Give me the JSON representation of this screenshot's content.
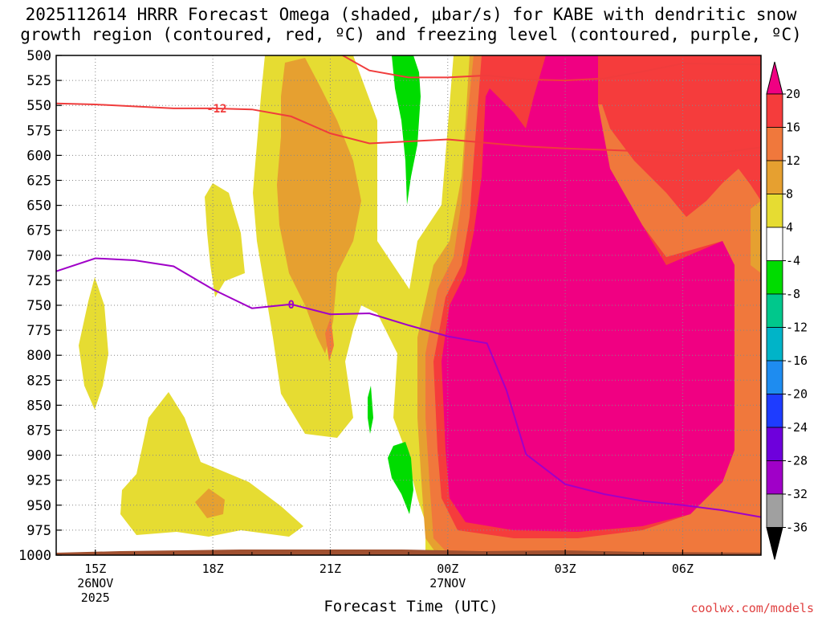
{
  "title_line1": "2025112614 HRRR Forecast Omega (shaded, μbar/s) for KABE with dendritic snow",
  "title_line2": "growth region (contoured, red, ºC) and freezing level (contoured, purple, ºC)",
  "credit": "coolwx.com/models",
  "chart_data": {
    "type": "contour",
    "xlabel": "Forecast Time (UTC)",
    "ylabel": "",
    "x_ticks": [
      {
        "hour": 1,
        "label": "15Z",
        "sub1": "26NOV",
        "sub2": "2025"
      },
      {
        "hour": 4,
        "label": "18Z",
        "sub1": "",
        "sub2": ""
      },
      {
        "hour": 7,
        "label": "21Z",
        "sub1": "",
        "sub2": ""
      },
      {
        "hour": 10,
        "label": "00Z",
        "sub1": "27NOV",
        "sub2": ""
      },
      {
        "hour": 13,
        "label": "03Z",
        "sub1": "",
        "sub2": ""
      },
      {
        "hour": 16,
        "label": "06Z",
        "sub1": "",
        "sub2": ""
      }
    ],
    "xlim": [
      0,
      18
    ],
    "y_ticks": [
      "500",
      "525",
      "550",
      "575",
      "600",
      "625",
      "650",
      "675",
      "700",
      "725",
      "750",
      "775",
      "800",
      "825",
      "850",
      "875",
      "900",
      "925",
      "950",
      "975",
      "1000"
    ],
    "ylim": [
      500,
      1000
    ],
    "colorbar": {
      "labels": [
        "20",
        "16",
        "12",
        "8",
        "4",
        "-4",
        "-8",
        "-12",
        "-16",
        "-20",
        "-24",
        "-28",
        "-32",
        "-36"
      ],
      "bins": [
        {
          "from": 16,
          "to": 20,
          "color": "#f53c3c"
        },
        {
          "from": 12,
          "to": 16,
          "color": "#f0783c"
        },
        {
          "from": 8,
          "to": 12,
          "color": "#e6a030"
        },
        {
          "from": 4,
          "to": 8,
          "color": "#e6dc32"
        },
        {
          "from": -4,
          "to": 4,
          "color": "#ffffff"
        },
        {
          "from": -8,
          "to": -4,
          "color": "#00dc00"
        },
        {
          "from": -12,
          "to": -8,
          "color": "#00c88c"
        },
        {
          "from": -16,
          "to": -12,
          "color": "#00b4c8"
        },
        {
          "from": -20,
          "to": -16,
          "color": "#1e8cf0"
        },
        {
          "from": -24,
          "to": -20,
          "color": "#1e3cff"
        },
        {
          "from": -28,
          "to": -24,
          "color": "#6e00dc"
        },
        {
          "from": -32,
          "to": -28,
          "color": "#a000c8"
        },
        {
          "from": -36,
          "to": -32,
          "color": "#a0a0a0"
        }
      ],
      "high_color": "#f00082",
      "low_color": "#000000"
    },
    "contours": [
      {
        "name": "-12",
        "color": "#f03c3c",
        "points": [
          [
            0,
            548
          ],
          [
            1,
            549
          ],
          [
            3,
            553
          ],
          [
            4,
            553
          ],
          [
            5,
            554
          ],
          [
            6,
            561
          ],
          [
            7,
            578
          ],
          [
            8,
            588
          ],
          [
            9,
            586
          ],
          [
            10,
            584
          ],
          [
            12,
            591
          ],
          [
            13,
            593
          ],
          [
            15,
            596
          ],
          [
            16,
            598
          ],
          [
            17,
            597
          ],
          [
            18,
            592
          ]
        ]
      },
      {
        "name": "-12",
        "color": "#f03c3c",
        "points": [
          [
            7,
            493
          ],
          [
            8,
            515
          ],
          [
            9,
            522
          ],
          [
            10,
            522
          ],
          [
            11,
            520
          ],
          [
            12,
            524
          ],
          [
            13,
            525
          ],
          [
            14,
            523
          ],
          [
            15,
            516
          ],
          [
            16,
            508
          ],
          [
            18,
            509
          ]
        ]
      },
      {
        "name": "0",
        "color": "#a000c8",
        "points": [
          [
            0,
            716
          ],
          [
            1,
            703
          ],
          [
            2,
            705
          ],
          [
            3,
            711
          ],
          [
            4,
            734
          ],
          [
            5,
            753
          ],
          [
            6,
            749
          ],
          [
            7,
            759
          ],
          [
            8,
            758
          ],
          [
            9,
            770
          ],
          [
            10,
            781
          ],
          [
            11,
            788
          ],
          [
            11.5,
            835
          ],
          [
            12,
            899
          ],
          [
            13,
            929
          ],
          [
            14,
            939
          ],
          [
            15,
            946
          ],
          [
            16,
            950
          ],
          [
            17,
            955
          ],
          [
            18,
            962
          ]
        ]
      }
    ],
    "contour_labels": [
      {
        "text": "-12",
        "x": 4.1,
        "y": 553
      },
      {
        "text": "0",
        "x": 6.0,
        "y": 749
      }
    ]
  }
}
